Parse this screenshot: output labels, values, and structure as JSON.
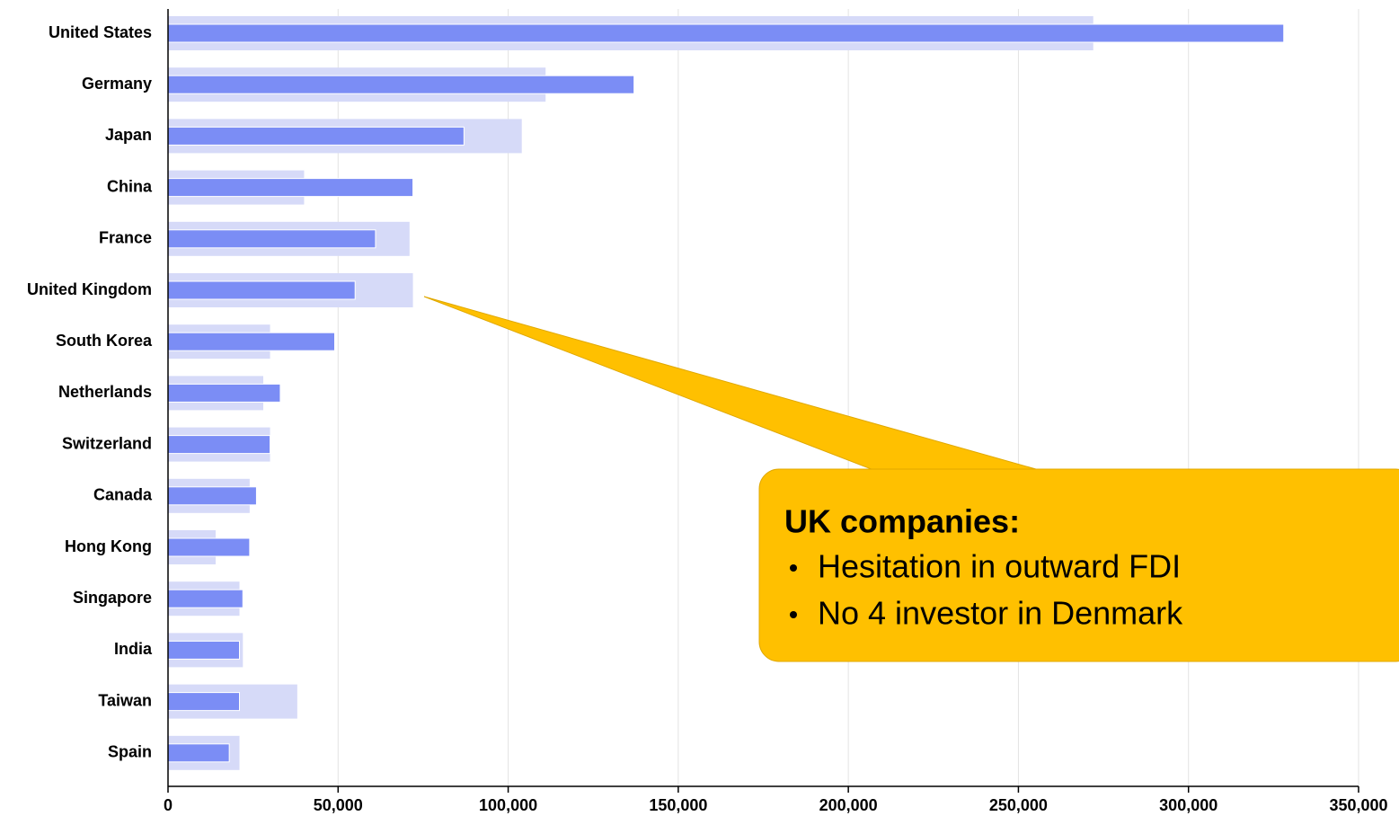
{
  "chart_data": {
    "type": "bar",
    "orientation": "horizontal",
    "categories": [
      "United States",
      "Germany",
      "Japan",
      "China",
      "France",
      "United Kingdom",
      "South Korea",
      "Netherlands",
      "Switzerland",
      "Canada",
      "Hong Kong",
      "Singapore",
      "India",
      "Taiwan",
      "Spain"
    ],
    "series": [
      {
        "color": "#d6daf8",
        "values": [
          272000,
          111000,
          104000,
          40000,
          71000,
          72000,
          30000,
          28000,
          30000,
          24000,
          14000,
          21000,
          22000,
          38000,
          21000
        ]
      },
      {
        "color": "#7b8df5",
        "values": [
          328000,
          137000,
          87000,
          72000,
          61000,
          55000,
          49000,
          33000,
          30000,
          26000,
          24000,
          22000,
          21000,
          21000,
          18000
        ]
      }
    ],
    "xlim": [
      0,
      350000
    ],
    "xticks": [
      0,
      {
        "value": 50000,
        "label": "50,000"
      },
      {
        "value": 100000,
        "label": "100,000"
      },
      {
        "value": 150000,
        "label": "150,000"
      },
      {
        "value": 200000,
        "label": "200,000"
      },
      {
        "value": 250000,
        "label": "250,000"
      },
      {
        "value": 300000,
        "label": "300,000"
      },
      {
        "value": 350000,
        "label": "350,000"
      }
    ],
    "grid": true,
    "annotation": {
      "title": "UK companies:",
      "items": [
        "Hesitation in outward FDI",
        "No 4 investor in Denmark"
      ]
    }
  }
}
